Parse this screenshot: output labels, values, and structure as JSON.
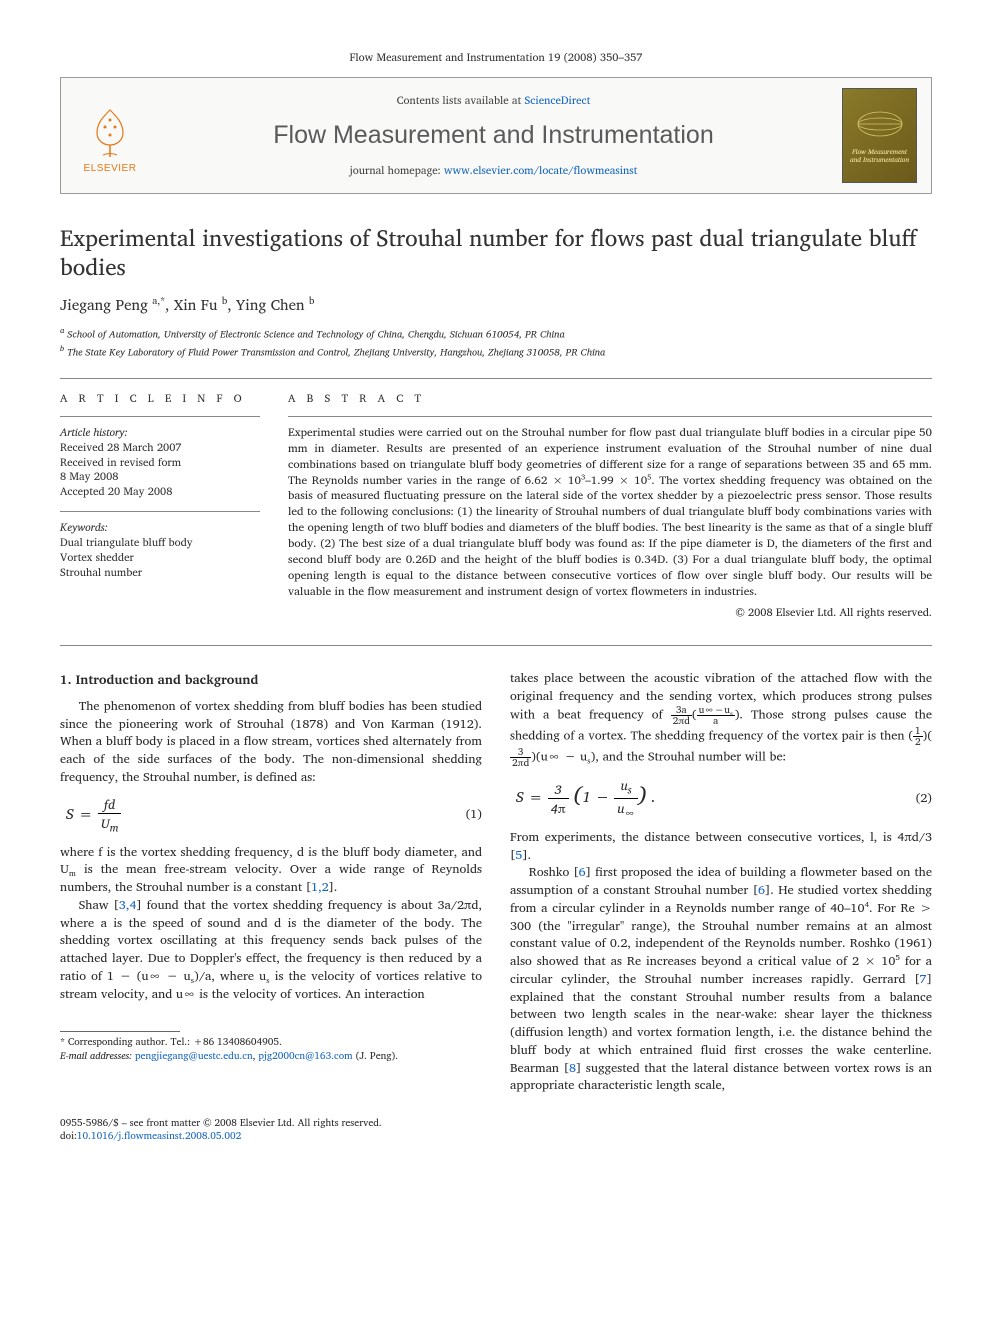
{
  "header": {
    "citation": "Flow Measurement and Instrumentation 19 (2008) 350–357",
    "contents_prefix": "Contents lists available at ",
    "contents_link": "ScienceDirect",
    "journal_name": "Flow Measurement and Instrumentation",
    "homepage_prefix": "journal homepage: ",
    "homepage_link": "www.elsevier.com/locate/flowmeasinst",
    "elsevier_label": "ELSEVIER",
    "cover_text": "Flow Measurement and Instrumentation"
  },
  "article": {
    "title": "Experimental investigations of Strouhal number for flows past dual triangulate bluff bodies",
    "authors_html": "Jiegang Peng <sup>a,*</sup>, Xin Fu <sup>b</sup>, Ying Chen <sup>b</sup>",
    "affiliations": [
      "a School of Automation, University of Electronic Science and Technology of China, Chengdu, Sichuan 610054, PR China",
      "b The State Key Laboratory of Fluid Power Transmission and Control, Zhejiang University, Hangzhou, Zhejiang 310058, PR China"
    ]
  },
  "info": {
    "heading": "A R T I C L E   I N F O",
    "history_label": "Article history:",
    "history": [
      "Received 28 March 2007",
      "Received in revised form",
      "8 May 2008",
      "Accepted 20 May 2008"
    ],
    "keywords_label": "Keywords:",
    "keywords": [
      "Dual triangulate bluff body",
      "Vortex shedder",
      "Strouhal number"
    ]
  },
  "abstract": {
    "heading": "A B S T R A C T",
    "text": "Experimental studies were carried out on the Strouhal number for flow past dual triangulate bluff bodies in a circular pipe 50 mm in diameter. Results are presented of an experience instrument evaluation of the Strouhal number of nine dual combinations based on triangulate bluff body geometries of different size for a range of separations between 35 and 65 mm. The Reynolds number varies in the range of 6.62 × 10³–1.99 × 10⁵. The vortex shedding frequency was obtained on the basis of measured fluctuating pressure on the lateral side of the vortex shedder by a piezoelectric press sensor. Those results led to the following conclusions: (1) the linearity of Strouhal numbers of dual triangulate bluff body combinations varies with the opening length of two bluff bodies and diameters of the bluff bodies. The best linearity is the same as that of a single bluff body. (2) The best size of a dual triangulate bluff body was found as: If the pipe diameter is D, the diameters of the first and second bluff body are 0.26D and the height of the bluff bodies is 0.34D. (3) For a dual triangulate bluff body, the optimal opening length is equal to the distance between consecutive vortices of flow over single bluff body. Our results will be valuable in the flow measurement and instrument design of vortex flowmeters in industries.",
    "copyright": "© 2008 Elsevier Ltd. All rights reserved."
  },
  "section1": {
    "heading": "1. Introduction and background",
    "p1": "The phenomenon of vortex shedding from bluff bodies has been studied since the pioneering work of Strouhal (1878) and Von Karman (1912). When a bluff body is placed in a flow stream, vortices shed alternately from each of the side surfaces of the body. The non-dimensional shedding frequency, the Strouhal number, is defined as:",
    "eq1_num": "(1)",
    "p2_pre": "where f is the vortex shedding frequency, d is the bluff body diameter, and Uₘ is the mean free-stream velocity. Over a wide range of Reynolds numbers, the Strouhal number is a constant [",
    "p2_ref": "1,2",
    "p2_post": "].",
    "p3_pre": "Shaw [",
    "p3_ref": "3,4",
    "p3_post": "] found that the vortex shedding frequency is about 3a/2πd, where a is the speed of sound and d is the diameter of the body. The shedding vortex oscillating at this frequency sends back pulses of the attached layer. Due to Doppler's effect, the frequency is then reduced by a ratio of 1 − (u∞ − uₛ)/a, where uₛ is the velocity of vortices relative to stream velocity, and u∞ is the velocity of vortices. An interaction"
  },
  "col2": {
    "p1": "takes place between the acoustic vibration of the attached flow with the original frequency and the sending vortex, which produces strong pulses with a beat frequency of ",
    "p1_tail": ". Those strong pulses cause the shedding of a vortex. The shedding frequency of the vortex pair is then ",
    "p1_tail2": ", and the Strouhal number will be:",
    "eq2_num": "(2)",
    "p2_pre": "From experiments, the distance between consecutive vortices, l, is 4πd/3 [",
    "p2_ref": "5",
    "p2_post": "].",
    "p3_pre": "Roshko [",
    "p3_ref1": "6",
    "p3_mid": "] first proposed the idea of building a flowmeter based on the assumption of a constant Strouhal number [",
    "p3_ref2": "6",
    "p3_mid2": "]. He studied vortex shedding from a circular cylinder in a Reynolds number range of 40–10⁴. For Re > 300 (the \"irregular\" range), the Strouhal number remains at an almost constant value of 0.2, independent of the Reynolds number. Roshko (1961) also showed that as Re increases beyond a critical value of 2 × 10⁵ for a circular cylinder, the Strouhal number increases rapidly. Gerrard [",
    "p3_ref3": "7",
    "p3_mid3": "] explained that the constant Strouhal number results from a balance between two length scales in the near-wake: shear layer the thickness (diffusion length) and vortex formation length, i.e. the distance behind the bluff body at which entrained fluid first crosses the wake centerline. Bearman [",
    "p3_ref4": "8",
    "p3_post": "] suggested that the lateral distance between vortex rows is an appropriate characteristic length scale,"
  },
  "footnote": {
    "corr": "* Corresponding author. Tel.: +86 13408604905.",
    "email_label": "E-mail addresses: ",
    "email1": "pengjiegang@uestc.edu.cn",
    "email_sep": ", ",
    "email2": "pjg2000cn@163.com",
    "email_tail": " (J. Peng)."
  },
  "bottom": {
    "line1": "0955-5986/$ – see front matter © 2008 Elsevier Ltd. All rights reserved.",
    "doi_prefix": "doi:",
    "doi": "10.1016/j.flowmeasinst.2008.05.002"
  },
  "colors": {
    "link": "#1565c0",
    "elsevier_orange": "#e67817",
    "rule": "#888888"
  }
}
